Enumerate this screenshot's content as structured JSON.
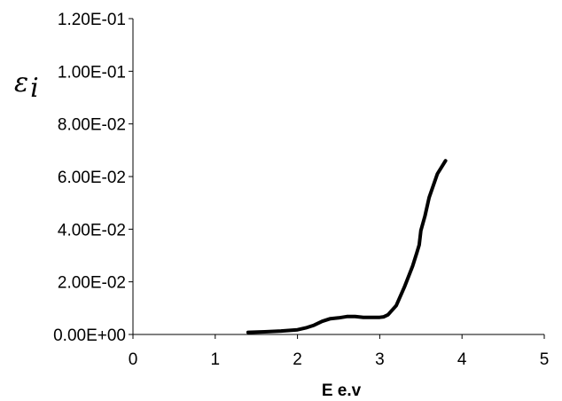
{
  "chart_data": {
    "type": "line",
    "title": "",
    "xlabel": "E e.v",
    "ylabel": "εi",
    "ylabel_parts": {
      "base": "ε",
      "sub": "i"
    },
    "xlim": [
      0,
      5
    ],
    "ylim": [
      0,
      0.12
    ],
    "x_ticks": [
      0,
      1,
      2,
      3,
      4,
      5
    ],
    "x_tick_labels": [
      "0",
      "1",
      "2",
      "3",
      "4",
      "5"
    ],
    "y_ticks": [
      0,
      0.02,
      0.04,
      0.06,
      0.08,
      0.1,
      0.12
    ],
    "y_tick_labels": [
      "0.00E+00",
      "2.00E-02",
      "4.00E-02",
      "6.00E-02",
      "8.00E-02",
      "1.00E-01",
      "1.20E-01"
    ],
    "grid": false,
    "legend": "none",
    "series": [
      {
        "color": "#000000",
        "x": [
          1.4,
          1.6,
          1.8,
          2.0,
          2.1,
          2.2,
          2.3,
          2.4,
          2.5,
          2.6,
          2.7,
          2.8,
          2.9,
          3.0,
          3.05,
          3.1,
          3.2,
          3.3,
          3.4,
          3.45,
          3.48,
          3.5,
          3.55,
          3.6,
          3.7,
          3.8
        ],
        "y": [
          0.0008,
          0.001,
          0.0013,
          0.0018,
          0.0025,
          0.0035,
          0.005,
          0.006,
          0.0063,
          0.0068,
          0.0068,
          0.0065,
          0.0065,
          0.0065,
          0.0067,
          0.0075,
          0.011,
          0.018,
          0.026,
          0.031,
          0.034,
          0.0395,
          0.045,
          0.052,
          0.061,
          0.066
        ]
      }
    ]
  }
}
